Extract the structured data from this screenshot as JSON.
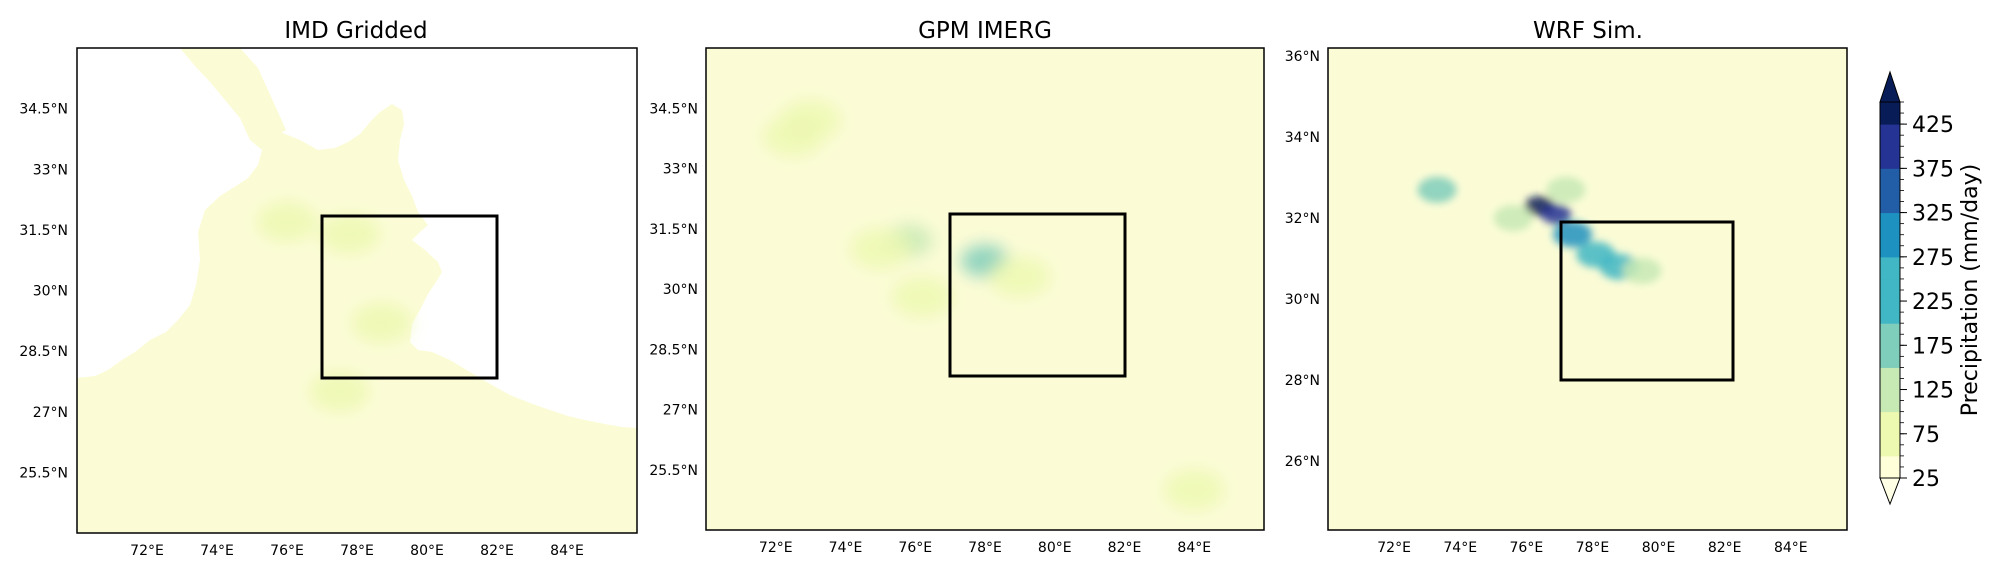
{
  "chart_data": [
    {
      "type": "heatmap",
      "title": "IMD Gridded",
      "xlabel": "",
      "ylabel": "",
      "xlim": [
        70,
        86
      ],
      "ylim": [
        24,
        36
      ],
      "x_ticks": [
        "72°E",
        "74°E",
        "76°E",
        "78°E",
        "80°E",
        "82°E",
        "84°E"
      ],
      "y_ticks": [
        "25.5°N",
        "27°N",
        "28.5°N",
        "30°N",
        "31.5°N",
        "33°N",
        "34.5°N"
      ],
      "box": {
        "lon": [
          77,
          82
        ],
        "lat": [
          28,
          32
        ]
      },
      "field_note": "mostly 25-75 mm/day; masked (no data) outside India",
      "hotspots": [
        {
          "lon": 76.0,
          "lat": 31.7,
          "value": 95
        },
        {
          "lon": 78.7,
          "lat": 29.2,
          "value": 90
        },
        {
          "lon": 77.8,
          "lat": 31.4,
          "value": 70
        },
        {
          "lon": 77.5,
          "lat": 27.5,
          "value": 55
        }
      ]
    },
    {
      "type": "heatmap",
      "title": "GPM IMERG",
      "xlabel": "",
      "ylabel": "",
      "xlim": [
        70,
        86
      ],
      "ylim": [
        24,
        36
      ],
      "x_ticks": [
        "72°E",
        "74°E",
        "76°E",
        "78°E",
        "80°E",
        "82°E",
        "84°E"
      ],
      "y_ticks": [
        "25.5°N",
        "27°N",
        "28.5°N",
        "30°N",
        "31.5°N",
        "33°N",
        "34.5°N"
      ],
      "box": {
        "lon": [
          77,
          82
        ],
        "lat": [
          28,
          32
        ]
      },
      "hotspots": [
        {
          "lon": 78.0,
          "lat": 30.7,
          "value": 175
        },
        {
          "lon": 75.8,
          "lat": 31.2,
          "value": 130
        },
        {
          "lon": 75.0,
          "lat": 31.0,
          "value": 85
        },
        {
          "lon": 79.0,
          "lat": 30.3,
          "value": 80
        },
        {
          "lon": 73.0,
          "lat": 34.2,
          "value": 75
        },
        {
          "lon": 72.5,
          "lat": 33.8,
          "value": 65
        },
        {
          "lon": 76.2,
          "lat": 29.8,
          "value": 70
        },
        {
          "lon": 84.0,
          "lat": 25.0,
          "value": 60
        }
      ]
    },
    {
      "type": "heatmap",
      "title": "WRF Sim.",
      "xlabel": "",
      "ylabel": "",
      "xlim": [
        70,
        85.7
      ],
      "ylim": [
        24.3,
        36.2
      ],
      "x_ticks": [
        "72°E",
        "74°E",
        "76°E",
        "78°E",
        "80°E",
        "82°E",
        "84°E"
      ],
      "y_ticks": [
        "26°N",
        "28°N",
        "30°N",
        "32°N",
        "34°N",
        "36°N"
      ],
      "box": {
        "lon": [
          77,
          82
        ],
        "lat": [
          28,
          32
        ]
      },
      "hotspots": [
        {
          "lon": 76.4,
          "lat": 32.3,
          "value": 425
        },
        {
          "lon": 76.9,
          "lat": 32.1,
          "value": 400
        },
        {
          "lon": 77.4,
          "lat": 31.6,
          "value": 300
        },
        {
          "lon": 78.1,
          "lat": 31.1,
          "value": 250
        },
        {
          "lon": 78.8,
          "lat": 30.8,
          "value": 225
        },
        {
          "lon": 73.3,
          "lat": 32.7,
          "value": 200
        },
        {
          "lon": 75.6,
          "lat": 32.0,
          "value": 150
        },
        {
          "lon": 77.2,
          "lat": 32.7,
          "value": 130
        },
        {
          "lon": 79.5,
          "lat": 30.7,
          "value": 110
        }
      ]
    }
  ],
  "colorbar": {
    "label": "Precipitation (mm/day)",
    "min": 25,
    "max": 450,
    "step": 25,
    "ticks": [
      "25",
      "75",
      "125",
      "175",
      "225",
      "275",
      "325",
      "375",
      "425"
    ],
    "extend": "both",
    "colormap": "YlGnBu",
    "colors": [
      "#ffffd9",
      "#edf8b1",
      "#c7e9b4",
      "#7fcdbb",
      "#41b6c4",
      "#1d91c0",
      "#225ea8",
      "#253494",
      "#081d58"
    ]
  }
}
